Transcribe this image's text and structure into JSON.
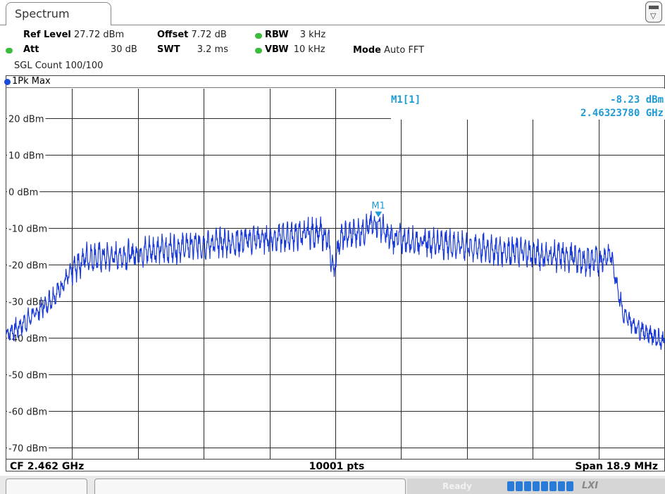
{
  "tab": {
    "title": "Spectrum"
  },
  "settings": {
    "ref_level_label": "Ref Level",
    "ref_level_value": "27.72 dBm",
    "offset_label": "Offset",
    "offset_value": "7.72 dB",
    "rbw_label": "RBW",
    "rbw_value": "3 kHz",
    "att_label": "Att",
    "att_value": "30 dB",
    "swt_label": "SWT",
    "swt_value": "3.2 ms",
    "vbw_label": "VBW",
    "vbw_value": "10 kHz",
    "mode_label": "Mode",
    "mode_value": "Auto FFT",
    "count_text": "SGL Count 100/100"
  },
  "trace": {
    "label": "1Pk Max",
    "color": "#1a3ad8"
  },
  "marker": {
    "name": "M1",
    "readout_label": "M1[1]",
    "level": "-8.23 dBm",
    "frequency": "2.46323780 GHz",
    "color": "#1e9ad6"
  },
  "footer": {
    "center": "CF 2.462 GHz",
    "points": "10001 pts",
    "span": "Span 18.9 MHz"
  },
  "status": {
    "ready": "Ready",
    "lxi": "LXI",
    "progress": 1.0
  },
  "chart_data": {
    "type": "line",
    "xlim": [
      2.45255,
      2.47145
    ],
    "xunit": "GHz",
    "ylim": [
      -73,
      28
    ],
    "yunit": "dBm",
    "y_ticks": [
      {
        "value": 20,
        "label": "20 dBm"
      },
      {
        "value": 10,
        "label": "10 dBm"
      },
      {
        "value": 0,
        "label": "0 dBm"
      },
      {
        "value": -10,
        "label": "-10 dBm"
      },
      {
        "value": -20,
        "label": "-20 dBm"
      },
      {
        "value": -30,
        "label": "-30 dBm"
      },
      {
        "value": -40,
        "label": "-40 dBm"
      },
      {
        "value": -50,
        "label": "-50 dBm"
      },
      {
        "value": -60,
        "label": "-60 dBm"
      },
      {
        "value": -70,
        "label": "-70 dBm"
      }
    ],
    "grid": true,
    "x_divisions": 10,
    "series": [
      {
        "x": [
          2.45255,
          2.45292,
          2.4533,
          2.45368,
          2.45405,
          2.45443,
          2.45481,
          2.45519,
          2.45556,
          2.45594,
          2.45632,
          2.4567,
          2.45745,
          2.45821,
          2.45896,
          2.45972,
          2.46047,
          2.46123,
          2.46161,
          2.46179,
          2.46195,
          2.46212,
          2.46236,
          2.46274,
          2.46324,
          2.46349,
          2.46425,
          2.465,
          2.46576,
          2.46651,
          2.46727,
          2.46802,
          2.46878,
          2.46915,
          2.46953,
          2.46978,
          2.46991,
          2.47,
          2.47028,
          2.47066,
          2.47104,
          2.47145
        ],
        "y": [
          -39,
          -37,
          -34,
          -31,
          -27,
          -22,
          -18,
          -18,
          -18,
          -17.5,
          -17,
          -16,
          -15.5,
          -14.5,
          -14,
          -13,
          -12.5,
          -11.5,
          -11.5,
          -13.5,
          -22,
          -13,
          -12,
          -11,
          -8.23,
          -12.5,
          -13.5,
          -14,
          -15,
          -16,
          -16.5,
          -17.5,
          -18,
          -19,
          -19,
          -18,
          -17,
          -21,
          -34,
          -37,
          -39,
          -41
        ]
      }
    ]
  }
}
